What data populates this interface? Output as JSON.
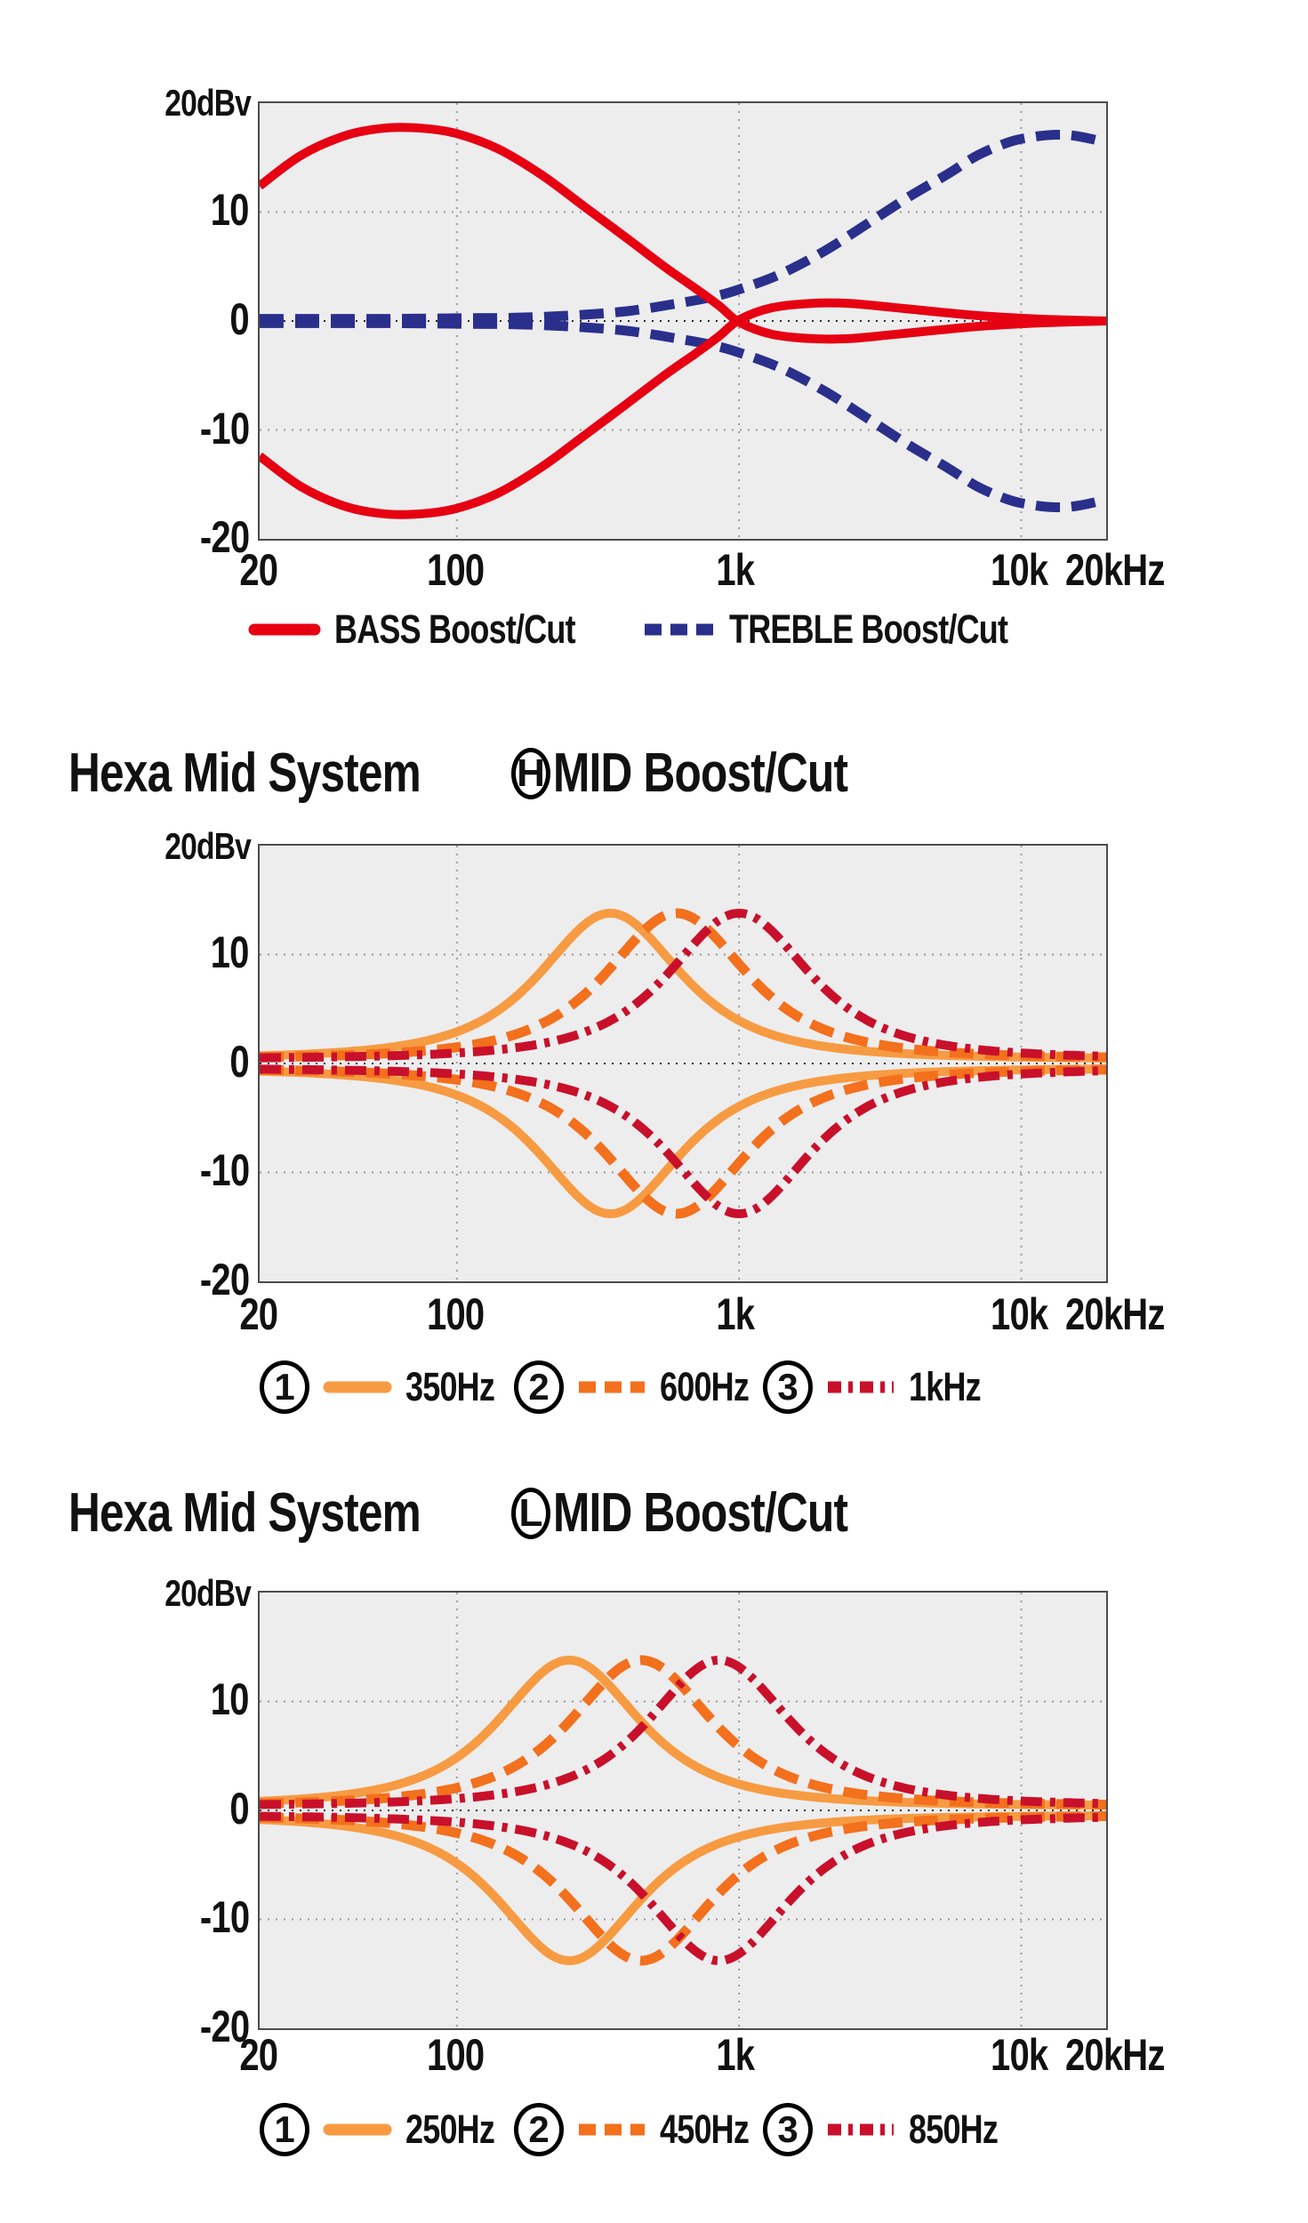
{
  "axis": {
    "unit_label": "20dBv",
    "y_ticks": [
      "10",
      "0",
      "-10",
      "-20"
    ],
    "x_ticks": [
      "20",
      "100",
      "1k",
      "10k",
      "20kHz"
    ],
    "x_tick_freqs_hz": [
      20,
      100,
      1000,
      10000,
      20000
    ],
    "v_grid_hz": [
      100,
      1000,
      10000
    ],
    "y_grid_db": [
      10,
      0,
      -10
    ],
    "x_range_hz": [
      20,
      20000
    ],
    "y_range_db": [
      -20,
      20
    ]
  },
  "colors": {
    "bass_red": "#E60012",
    "treble_blue": "#2A2F8C",
    "mid_orange_light": "#F79B42",
    "mid_orange_dark": "#F3701D",
    "mid_crimson": "#C9102B",
    "plot_bg": "#EDEDEE",
    "grid_gray": "#9B9B9B",
    "zero_line": "#2C2C2C",
    "plot_border": "#4C4C4C",
    "text": "#111111"
  },
  "charts": [
    {
      "name": "bass-treble",
      "legend": [
        {
          "label": "BASS Boost/Cut",
          "color": "#E60012",
          "style": "solid"
        },
        {
          "label": "TREBLE Boost/Cut",
          "color": "#2A2F8C",
          "style": "dashed"
        }
      ],
      "chart_data": {
        "type": "line",
        "x_scale": "log",
        "x_range_hz": [
          20,
          20000
        ],
        "y_range_db": [
          -20,
          20
        ],
        "series": [
          {
            "name": "TREBLE Boost",
            "color": "#2A2F8C",
            "style": "dashed",
            "points_hz_db": [
              [
                20,
                0.2
              ],
              [
                60,
                0.2
              ],
              [
                100,
                0.25
              ],
              [
                160,
                0.3
              ],
              [
                250,
                0.5
              ],
              [
                400,
                0.9
              ],
              [
                600,
                1.6
              ],
              [
                800,
                2.2
              ],
              [
                1000,
                2.9
              ],
              [
                1400,
                4.3
              ],
              [
                2000,
                6.4
              ],
              [
                2800,
                8.8
              ],
              [
                4000,
                11.4
              ],
              [
                5500,
                13.5
              ],
              [
                7000,
                15.2
              ],
              [
                9000,
                16.4
              ],
              [
                11000,
                16.9
              ],
              [
                13500,
                17.1
              ],
              [
                16000,
                16.95
              ],
              [
                20000,
                16.4
              ]
            ]
          },
          {
            "name": "TREBLE Cut",
            "color": "#2A2F8C",
            "style": "dashed",
            "mirror_of": "TREBLE Boost"
          },
          {
            "name": "BASS Boost",
            "color": "#E60012",
            "style": "solid",
            "points_hz_db": [
              [
                20,
                12.4
              ],
              [
                28,
                15.2
              ],
              [
                40,
                17.0
              ],
              [
                55,
                17.7
              ],
              [
                75,
                17.7
              ],
              [
                100,
                17.2
              ],
              [
                140,
                15.8
              ],
              [
                200,
                13.4
              ],
              [
                280,
                10.6
              ],
              [
                400,
                7.6
              ],
              [
                550,
                4.9
              ],
              [
                700,
                3.0
              ],
              [
                850,
                1.4
              ],
              [
                1000,
                -0.1
              ],
              [
                1300,
                -1.2
              ],
              [
                1800,
                -1.62
              ],
              [
                2500,
                -1.6
              ],
              [
                3500,
                -1.25
              ],
              [
                5000,
                -0.85
              ],
              [
                7000,
                -0.5
              ],
              [
                10000,
                -0.25
              ],
              [
                14000,
                -0.1
              ],
              [
                20000,
                0.0
              ]
            ]
          },
          {
            "name": "BASS Cut",
            "color": "#E60012",
            "style": "solid",
            "mirror_of": "BASS Boost"
          }
        ]
      }
    },
    {
      "name": "hexa-mid-h",
      "title": {
        "prefix": "Hexa Mid System",
        "circle": "H",
        "suffix": "MID Boost/Cut"
      },
      "legend": [
        {
          "num": "1",
          "label": "350Hz",
          "color": "#F79B42",
          "style": "solid"
        },
        {
          "num": "2",
          "label": "600Hz",
          "color": "#F3701D",
          "style": "dashed"
        },
        {
          "num": "3",
          "label": "1kHz",
          "color": "#C9102B",
          "style": "dashdot"
        }
      ],
      "chart_data": {
        "type": "line",
        "x_scale": "log",
        "x_range_hz": [
          20,
          20000
        ],
        "y_range_db": [
          -20,
          20
        ],
        "bell_model": {
          "half_width_log10": 0.4,
          "power": 1.6,
          "base_db": 0.4,
          "peak_db_minus_base": 13.4
        },
        "series": [
          {
            "name": "350Hz boost/cut",
            "center_hz": 350,
            "peak_db": 13.8,
            "boost_and_cut": true,
            "color": "#F79B42",
            "style": "solid"
          },
          {
            "name": "600Hz boost/cut",
            "center_hz": 600,
            "peak_db": 13.8,
            "boost_and_cut": true,
            "color": "#F3701D",
            "style": "dashed"
          },
          {
            "name": "1kHz boost/cut",
            "center_hz": 1000,
            "peak_db": 13.8,
            "boost_and_cut": true,
            "color": "#C9102B",
            "style": "dashdot"
          }
        ]
      }
    },
    {
      "name": "hexa-mid-l",
      "title": {
        "prefix": "Hexa Mid System",
        "circle": "L",
        "suffix": "MID Boost/Cut"
      },
      "legend": [
        {
          "num": "1",
          "label": "250Hz",
          "color": "#F79B42",
          "style": "solid"
        },
        {
          "num": "2",
          "label": "450Hz",
          "color": "#F3701D",
          "style": "dashed"
        },
        {
          "num": "3",
          "label": "850Hz",
          "color": "#C9102B",
          "style": "dashdot"
        }
      ],
      "chart_data": {
        "type": "line",
        "x_scale": "log",
        "x_range_hz": [
          20,
          20000
        ],
        "y_range_db": [
          -20,
          20
        ],
        "bell_model": {
          "half_width_log10": 0.4,
          "power": 1.6,
          "base_db": 0.4,
          "peak_db_minus_base": 13.4
        },
        "series": [
          {
            "name": "250Hz boost/cut",
            "center_hz": 250,
            "peak_db": 13.8,
            "boost_and_cut": true,
            "color": "#F79B42",
            "style": "solid"
          },
          {
            "name": "450Hz boost/cut",
            "center_hz": 450,
            "peak_db": 13.8,
            "boost_and_cut": true,
            "color": "#F3701D",
            "style": "dashed"
          },
          {
            "name": "850Hz boost/cut",
            "center_hz": 850,
            "peak_db": 13.8,
            "boost_and_cut": true,
            "color": "#C9102B",
            "style": "dashdot"
          }
        ]
      }
    }
  ]
}
